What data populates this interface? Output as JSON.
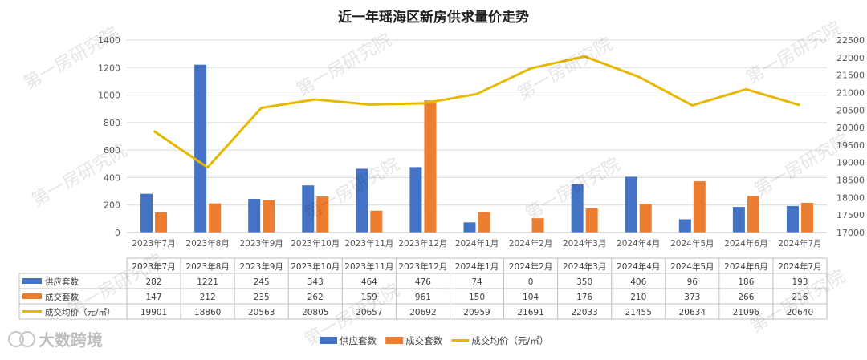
{
  "chart_data": {
    "type": "bar",
    "title": "近一年瑶海区新房供求量价走势",
    "categories": [
      "2023年7月",
      "2023年8月",
      "2023年9月",
      "2023年10月",
      "2023年11月",
      "2023年12月",
      "2024年1月",
      "2024年2月",
      "2024年3月",
      "2024年4月",
      "2024年5月",
      "2024年6月",
      "2024年7月"
    ],
    "series": [
      {
        "name": "供应套数",
        "type": "bar",
        "axis": "left",
        "color": "#4472C4",
        "values": [
          282,
          1221,
          245,
          343,
          464,
          476,
          74,
          0,
          350,
          406,
          96,
          186,
          193
        ]
      },
      {
        "name": "成交套数",
        "type": "bar",
        "axis": "left",
        "color": "#ED7D31",
        "values": [
          147,
          212,
          235,
          262,
          159,
          961,
          150,
          104,
          176,
          210,
          373,
          266,
          216
        ]
      },
      {
        "name": "成交均价（元/㎡）",
        "type": "line",
        "axis": "right",
        "color": "#E6B800",
        "values": [
          19901,
          18860,
          20563,
          20805,
          20657,
          20692,
          20959,
          21691,
          22033,
          21455,
          20634,
          21096,
          20640
        ]
      }
    ],
    "y_left": {
      "min": 0,
      "max": 1400,
      "step": 200,
      "ticks": [
        "0",
        "200",
        "400",
        "600",
        "800",
        "1000",
        "1200",
        "1400"
      ]
    },
    "y_right": {
      "min": 17000,
      "max": 22500,
      "step": 500,
      "ticks": [
        "17000",
        "17500",
        "18000",
        "18500",
        "19000",
        "19500",
        "20000",
        "20500",
        "21000",
        "21500",
        "22000",
        "22500"
      ]
    },
    "grid": true,
    "legend_position": "bottom",
    "data_table": true
  },
  "watermark": "第一房研究院",
  "brand_logo": "大数跨境"
}
